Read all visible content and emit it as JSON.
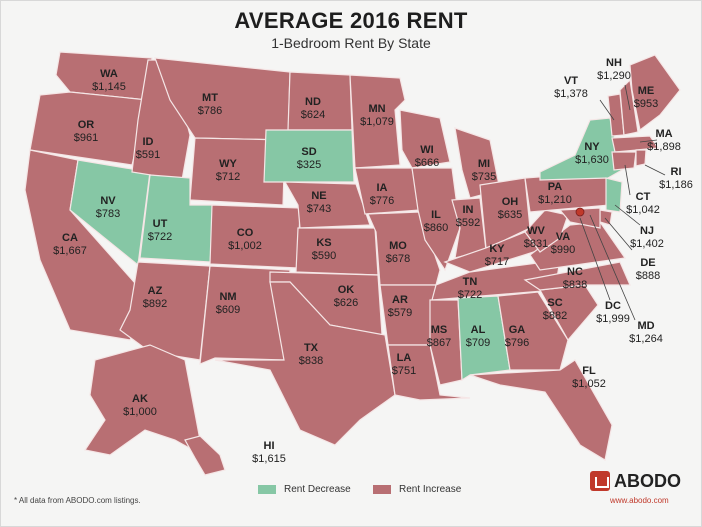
{
  "title": "AVERAGE 2016 RENT",
  "subtitle": "1-Bedroom Rent By State",
  "colors": {
    "increase": "#b86f73",
    "decrease": "#86c7a5",
    "text": "#222222",
    "background": "#f5f5f4",
    "brand": "#c0392b"
  },
  "legend": {
    "decrease": "Rent Decrease",
    "increase": "Rent Increase"
  },
  "footnote": "* All data from ABODO.com listings.",
  "brand": {
    "name": "ABODO",
    "url": "www.abodo.com",
    "icon": "house-icon"
  },
  "states": [
    {
      "abbr": "WA",
      "rent": "$1,145",
      "change": "increase"
    },
    {
      "abbr": "OR",
      "rent": "$961",
      "change": "increase"
    },
    {
      "abbr": "CA",
      "rent": "$1,667",
      "change": "increase"
    },
    {
      "abbr": "NV",
      "rent": "$783",
      "change": "decrease"
    },
    {
      "abbr": "ID",
      "rent": "$591",
      "change": "increase"
    },
    {
      "abbr": "MT",
      "rent": "$786",
      "change": "increase"
    },
    {
      "abbr": "WY",
      "rent": "$712",
      "change": "increase"
    },
    {
      "abbr": "UT",
      "rent": "$722",
      "change": "decrease"
    },
    {
      "abbr": "AZ",
      "rent": "$892",
      "change": "increase"
    },
    {
      "abbr": "CO",
      "rent": "$1,002",
      "change": "increase"
    },
    {
      "abbr": "NM",
      "rent": "$609",
      "change": "increase"
    },
    {
      "abbr": "ND",
      "rent": "$624",
      "change": "increase"
    },
    {
      "abbr": "SD",
      "rent": "$325",
      "change": "decrease"
    },
    {
      "abbr": "NE",
      "rent": "$743",
      "change": "increase"
    },
    {
      "abbr": "KS",
      "rent": "$590",
      "change": "increase"
    },
    {
      "abbr": "OK",
      "rent": "$626",
      "change": "increase"
    },
    {
      "abbr": "TX",
      "rent": "$838",
      "change": "increase"
    },
    {
      "abbr": "MN",
      "rent": "$1,079",
      "change": "increase"
    },
    {
      "abbr": "IA",
      "rent": "$776",
      "change": "increase"
    },
    {
      "abbr": "MO",
      "rent": "$678",
      "change": "increase"
    },
    {
      "abbr": "AR",
      "rent": "$579",
      "change": "increase"
    },
    {
      "abbr": "LA",
      "rent": "$751",
      "change": "increase"
    },
    {
      "abbr": "WI",
      "rent": "$666",
      "change": "increase"
    },
    {
      "abbr": "IL",
      "rent": "$860",
      "change": "increase"
    },
    {
      "abbr": "MI",
      "rent": "$735",
      "change": "increase"
    },
    {
      "abbr": "IN",
      "rent": "$592",
      "change": "increase"
    },
    {
      "abbr": "OH",
      "rent": "$635",
      "change": "increase"
    },
    {
      "abbr": "KY",
      "rent": "$717",
      "change": "increase"
    },
    {
      "abbr": "TN",
      "rent": "$722",
      "change": "increase"
    },
    {
      "abbr": "MS",
      "rent": "$867",
      "change": "increase"
    },
    {
      "abbr": "AL",
      "rent": "$709",
      "change": "decrease"
    },
    {
      "abbr": "GA",
      "rent": "$796",
      "change": "increase"
    },
    {
      "abbr": "FL",
      "rent": "$1,052",
      "change": "increase"
    },
    {
      "abbr": "SC",
      "rent": "$882",
      "change": "increase"
    },
    {
      "abbr": "NC",
      "rent": "$838",
      "change": "increase"
    },
    {
      "abbr": "VA",
      "rent": "$990",
      "change": "increase"
    },
    {
      "abbr": "WV",
      "rent": "$831",
      "change": "increase"
    },
    {
      "abbr": "PA",
      "rent": "$1,210",
      "change": "increase"
    },
    {
      "abbr": "NY",
      "rent": "$1,630",
      "change": "decrease"
    },
    {
      "abbr": "VT",
      "rent": "$1,378",
      "change": "increase"
    },
    {
      "abbr": "NH",
      "rent": "$1,290",
      "change": "increase"
    },
    {
      "abbr": "ME",
      "rent": "$953",
      "change": "increase"
    },
    {
      "abbr": "MA",
      "rent": "$1,898",
      "change": "increase"
    },
    {
      "abbr": "RI",
      "rent": "$1,186",
      "change": "increase"
    },
    {
      "abbr": "CT",
      "rent": "$1,042",
      "change": "increase"
    },
    {
      "abbr": "NJ",
      "rent": "$1,402",
      "change": "decrease"
    },
    {
      "abbr": "DE",
      "rent": "$888",
      "change": "increase"
    },
    {
      "abbr": "MD",
      "rent": "$1,264",
      "change": "increase"
    },
    {
      "abbr": "DC",
      "rent": "$1,999",
      "change": "increase"
    },
    {
      "abbr": "AK",
      "rent": "$1,000",
      "change": "increase"
    },
    {
      "abbr": "HI",
      "rent": "$1,615",
      "change": "increase"
    }
  ]
}
